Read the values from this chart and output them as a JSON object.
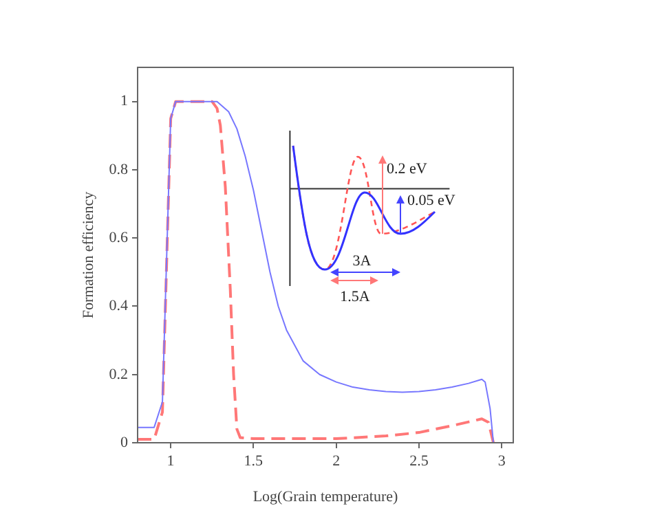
{
  "chart_data": {
    "type": "line",
    "xlabel": "Log(Grain temperature)",
    "ylabel": "Formation efficiency",
    "xlim": [
      0.8,
      3.07
    ],
    "xticks": [
      1,
      1.5,
      2,
      2.5,
      3
    ],
    "ylim": [
      0,
      1.1
    ],
    "yticks": [
      0,
      0.2,
      0.4,
      0.6,
      0.8,
      1
    ],
    "grid": false,
    "legend": false,
    "marker": "none",
    "annotations": [
      "0.2 eV",
      "0.05 eV",
      "3A",
      "1.5A"
    ],
    "series": [
      {
        "color": "#7777ff",
        "line_style": "solid",
        "x": [
          0.8,
          0.9,
          0.95,
          1.0,
          1.03,
          1.28,
          1.35,
          1.4,
          1.45,
          1.5,
          1.55,
          1.6,
          1.65,
          1.7,
          1.8,
          1.9,
          2.0,
          2.1,
          2.2,
          2.3,
          2.4,
          2.5,
          2.6,
          2.7,
          2.8,
          2.88,
          2.9,
          2.93,
          2.95
        ],
        "values": [
          0.045,
          0.045,
          0.12,
          0.95,
          1.0,
          1.0,
          0.97,
          0.92,
          0.84,
          0.74,
          0.62,
          0.5,
          0.4,
          0.33,
          0.24,
          0.2,
          0.178,
          0.163,
          0.155,
          0.15,
          0.148,
          0.15,
          0.155,
          0.163,
          0.174,
          0.186,
          0.178,
          0.1,
          0.0
        ]
      },
      {
        "color": "#ff7777",
        "line_style": "dashed",
        "x": [
          0.8,
          0.9,
          0.95,
          1.0,
          1.03,
          1.25,
          1.28,
          1.3,
          1.33,
          1.36,
          1.38,
          1.4,
          1.42,
          1.5,
          2.0,
          2.3,
          2.5,
          2.7,
          2.88,
          2.92,
          2.95
        ],
        "values": [
          0.01,
          0.01,
          0.09,
          0.95,
          1.0,
          1.0,
          0.98,
          0.93,
          0.75,
          0.45,
          0.2,
          0.04,
          0.015,
          0.012,
          0.012,
          0.02,
          0.03,
          0.05,
          0.07,
          0.06,
          0.0
        ]
      }
    ]
  }
}
